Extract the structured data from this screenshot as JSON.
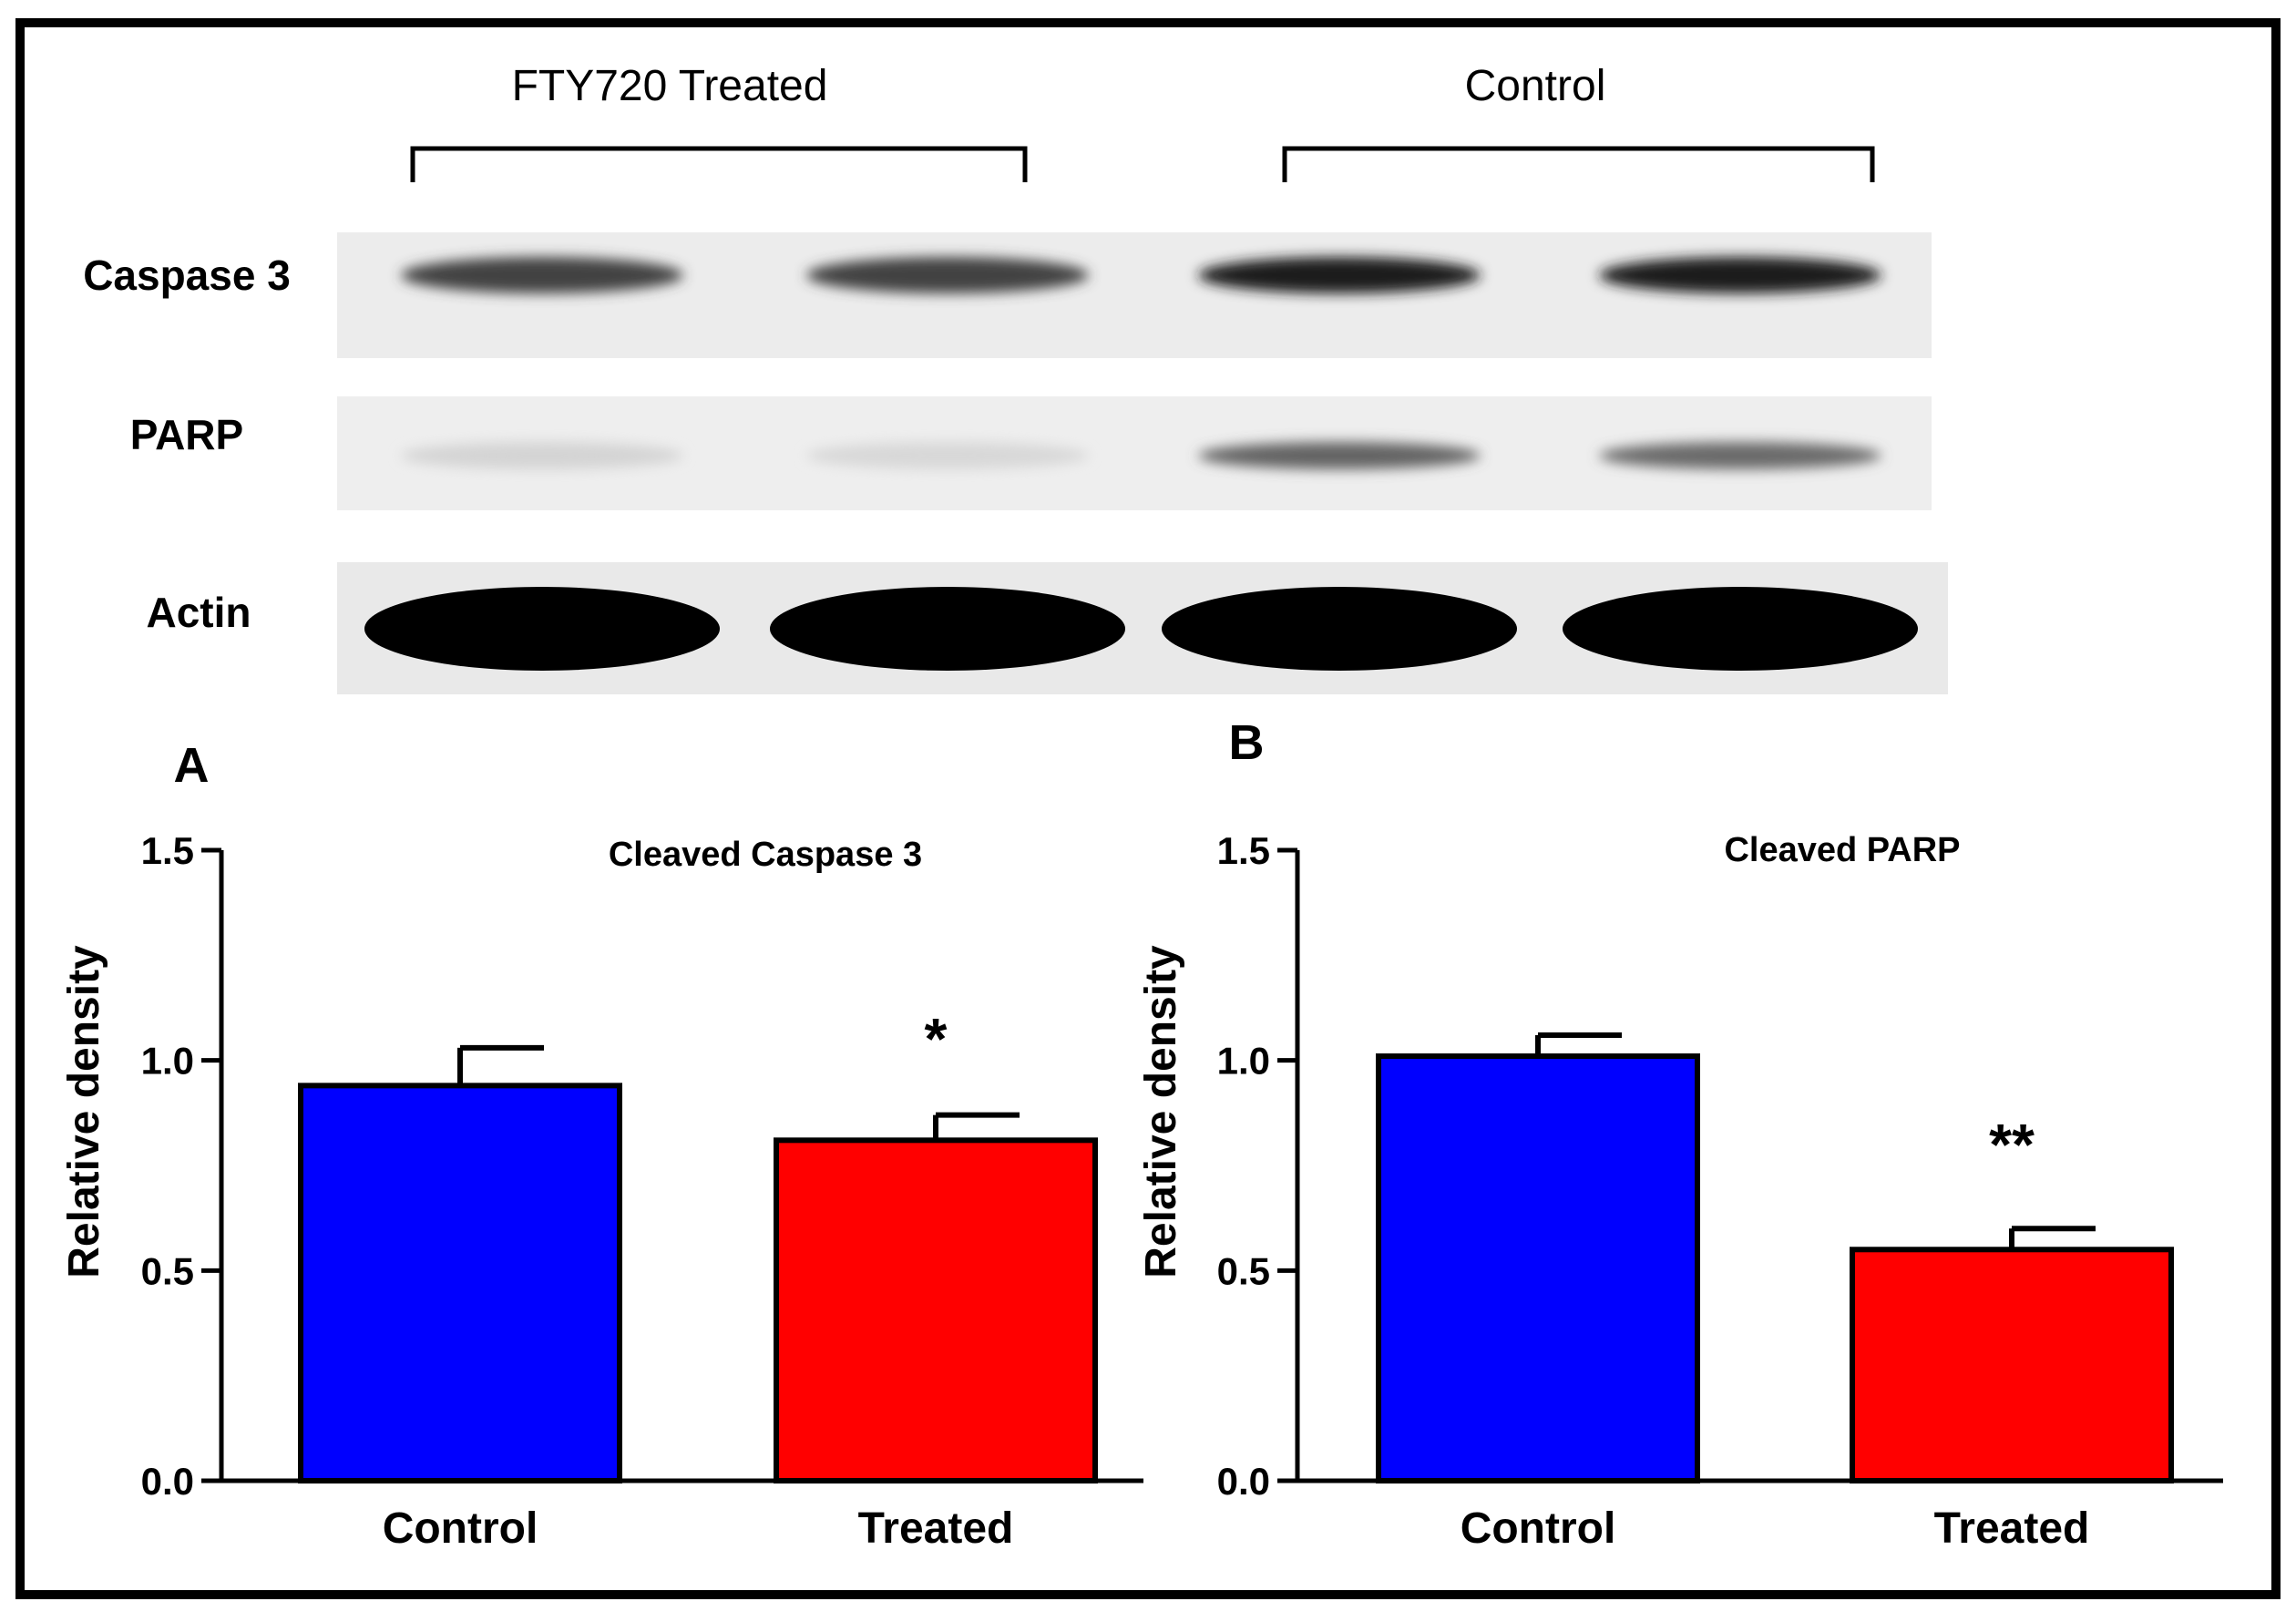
{
  "blot": {
    "group_labels": [
      "FTY720 Treated",
      "Control"
    ],
    "rows": [
      {
        "label": "Caspase 3",
        "intensities": [
          0.72,
          0.72,
          0.88,
          0.88
        ]
      },
      {
        "label": "PARP",
        "intensities": [
          0.1,
          0.08,
          0.58,
          0.55
        ]
      },
      {
        "label": "Actin",
        "intensities": [
          1.0,
          1.0,
          1.0,
          1.0
        ]
      }
    ]
  },
  "chart_data": [
    {
      "panel": "A",
      "type": "bar",
      "title": "Cleaved Caspase 3",
      "categories": [
        "Control",
        "Treated"
      ],
      "values": [
        0.94,
        0.81
      ],
      "errors": [
        0.09,
        0.06
      ],
      "significance": [
        "",
        "*"
      ],
      "colors": [
        "#0000ff",
        "#ff0000"
      ],
      "ylabel": "Relative density",
      "xlabel": "",
      "ylim": [
        0,
        1.5
      ],
      "yticks": [
        "0.0",
        "0.5",
        "1.0",
        "1.5"
      ]
    },
    {
      "panel": "B",
      "type": "bar",
      "title": "Cleaved PARP",
      "categories": [
        "Control",
        "Treated"
      ],
      "values": [
        1.01,
        0.55
      ],
      "errors": [
        0.05,
        0.05
      ],
      "significance": [
        "",
        "**"
      ],
      "colors": [
        "#0000ff",
        "#ff0000"
      ],
      "ylabel": "Relative density",
      "xlabel": "",
      "ylim": [
        0,
        1.5
      ],
      "yticks": [
        "0.0",
        "0.5",
        "1.0",
        "1.5"
      ]
    }
  ]
}
